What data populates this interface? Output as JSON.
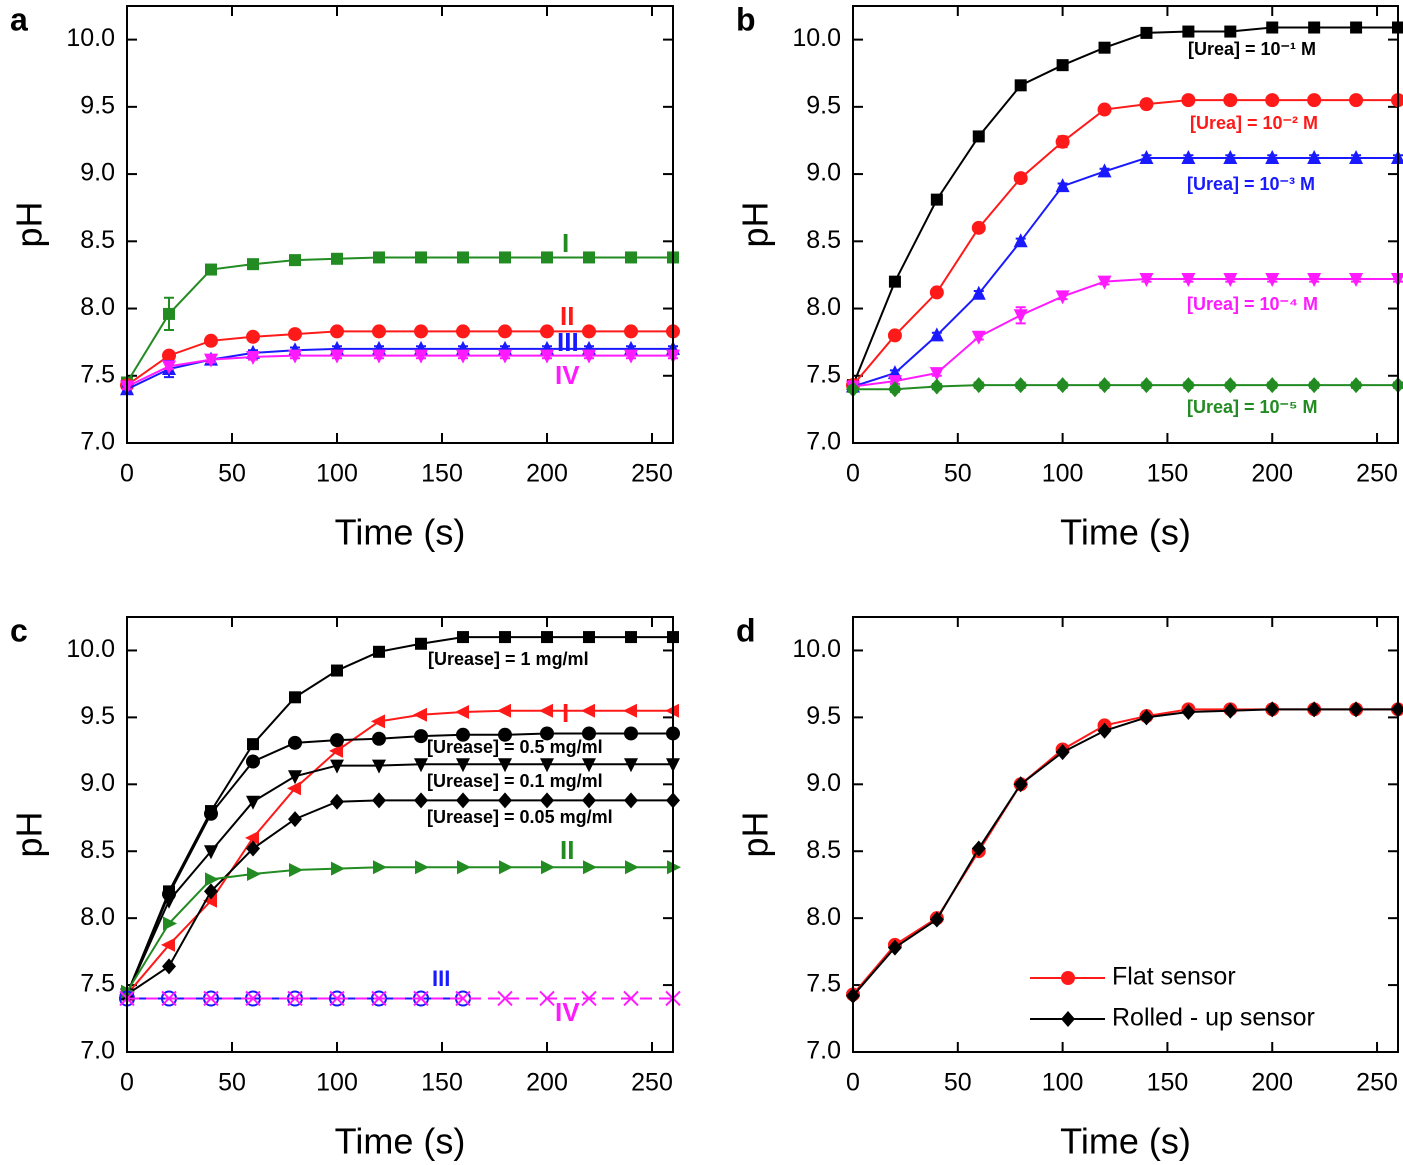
{
  "chart_data": [
    {
      "type": "line",
      "panel": "a",
      "xlabel": "Time (s)",
      "ylabel": "pH",
      "x": [
        0,
        20,
        40,
        60,
        80,
        100,
        120,
        140,
        160,
        180,
        200,
        220,
        240,
        260
      ],
      "xlim": [
        0,
        260
      ],
      "xticks": [
        0,
        50,
        100,
        150,
        200,
        250
      ],
      "ylim": [
        7.0,
        10.25
      ],
      "yticks": [
        {
          "value": 7,
          "label": "7.0"
        },
        7.5,
        {
          "value": 8,
          "label": "8.0"
        },
        8.5,
        {
          "value": 9,
          "label": "9.0"
        },
        9.5,
        {
          "value": 10,
          "label": "10.0"
        }
      ],
      "series": [
        {
          "name": "I",
          "color": "#228b22",
          "marker": "square",
          "values": [
            7.45,
            7.96,
            8.29,
            8.33,
            8.36,
            8.37,
            8.38,
            8.38,
            8.38,
            8.38,
            8.38,
            8.38,
            8.38,
            8.38
          ],
          "errors": [
            0.02,
            0.12,
            0.03,
            0.03,
            0.02,
            0.02,
            0.02,
            0.02,
            0.02,
            0.02,
            0.02,
            0.02,
            0.02,
            0.02
          ]
        },
        {
          "name": "II",
          "color": "#ff1a1a",
          "marker": "circle",
          "values": [
            7.43,
            7.65,
            7.76,
            7.79,
            7.81,
            7.83,
            7.83,
            7.83,
            7.83,
            7.83,
            7.83,
            7.83,
            7.83,
            7.83
          ],
          "errors": [
            0.02,
            0.02,
            0.02,
            0.02,
            0.02,
            0.02,
            0.02,
            0.02,
            0.02,
            0.02,
            0.02,
            0.02,
            0.02,
            0.02
          ]
        },
        {
          "name": "III",
          "color": "#1a1aff",
          "marker": "triangle-up",
          "values": [
            7.4,
            7.55,
            7.62,
            7.67,
            7.69,
            7.7,
            7.7,
            7.7,
            7.7,
            7.7,
            7.7,
            7.7,
            7.7,
            7.7
          ],
          "errors": [
            0.02,
            0.06,
            0.03,
            0.02,
            0.02,
            0.02,
            0.02,
            0.02,
            0.02,
            0.02,
            0.02,
            0.02,
            0.02,
            0.02
          ]
        },
        {
          "name": "IV",
          "color": "#ff1aff",
          "marker": "triangle-down",
          "values": [
            7.42,
            7.57,
            7.62,
            7.64,
            7.65,
            7.65,
            7.65,
            7.65,
            7.65,
            7.65,
            7.65,
            7.65,
            7.65,
            7.65
          ],
          "errors": [
            0.02,
            0.02,
            0.02,
            0.02,
            0.02,
            0.02,
            0.02,
            0.02,
            0.02,
            0.02,
            0.02,
            0.02,
            0.02,
            0.02
          ]
        }
      ],
      "annotations": [
        {
          "text": "I",
          "color": "#228b22"
        },
        {
          "text": "II",
          "color": "#ff1a1a"
        },
        {
          "text": "III",
          "color": "#1a1aff"
        },
        {
          "text": "IV",
          "color": "#ff1aff"
        }
      ]
    },
    {
      "type": "line",
      "panel": "b",
      "xlabel": "Time (s)",
      "ylabel": "pH",
      "x": [
        0,
        20,
        40,
        60,
        80,
        100,
        120,
        140,
        160,
        180,
        200,
        220,
        240,
        260
      ],
      "xlim": [
        0,
        260
      ],
      "xticks": [
        0,
        50,
        100,
        150,
        200,
        250
      ],
      "ylim": [
        7.0,
        10.25
      ],
      "yticks": [
        {
          "value": 7,
          "label": "7.0"
        },
        7.5,
        {
          "value": 8,
          "label": "8.0"
        },
        8.5,
        {
          "value": 9,
          "label": "9.0"
        },
        9.5,
        {
          "value": 10,
          "label": "10.0"
        }
      ],
      "series": [
        {
          "name": "[Urea] = 10⁻¹ M",
          "color": "#000000",
          "marker": "square",
          "values": [
            7.43,
            8.2,
            8.81,
            9.28,
            9.66,
            9.81,
            9.94,
            10.05,
            10.06,
            10.06,
            10.09,
            10.09,
            10.09,
            10.09
          ],
          "errors": [
            0.02,
            0.02,
            0.02,
            0.02,
            0.02,
            0.02,
            0.02,
            0.02,
            0.02,
            0.02,
            0.02,
            0.02,
            0.02,
            0.02
          ]
        },
        {
          "name": "[Urea] = 10⁻² M",
          "color": "#ff1a1a",
          "marker": "circle",
          "values": [
            7.43,
            7.8,
            8.12,
            8.6,
            8.97,
            9.24,
            9.48,
            9.52,
            9.55,
            9.55,
            9.55,
            9.55,
            9.55,
            9.55
          ],
          "errors": [
            0.02,
            0.02,
            0.02,
            0.02,
            0.02,
            0.04,
            0.02,
            0.02,
            0.02,
            0.02,
            0.02,
            0.02,
            0.02,
            0.02
          ]
        },
        {
          "name": "[Urea] = 10⁻³ M",
          "color": "#1a1aff",
          "marker": "triangle-up",
          "values": [
            7.42,
            7.52,
            7.8,
            8.11,
            8.5,
            8.91,
            9.02,
            9.12,
            9.12,
            9.12,
            9.12,
            9.12,
            9.12,
            9.12
          ],
          "errors": [
            0.02,
            0.02,
            0.02,
            0.02,
            0.02,
            0.02,
            0.02,
            0.02,
            0.02,
            0.02,
            0.02,
            0.02,
            0.02,
            0.02
          ]
        },
        {
          "name": "[Urea] = 10⁻⁴ M",
          "color": "#ff1aff",
          "marker": "triangle-down",
          "values": [
            7.42,
            7.46,
            7.52,
            7.79,
            7.95,
            8.09,
            8.2,
            8.22,
            8.22,
            8.22,
            8.22,
            8.22,
            8.22,
            8.22
          ],
          "errors": [
            0.02,
            0.02,
            0.02,
            0.02,
            0.06,
            0.02,
            0.02,
            0.02,
            0.02,
            0.02,
            0.02,
            0.02,
            0.02,
            0.02
          ]
        },
        {
          "name": "[Urea] = 10⁻⁵ M",
          "color": "#228b22",
          "marker": "diamond",
          "values": [
            7.4,
            7.4,
            7.42,
            7.43,
            7.43,
            7.43,
            7.43,
            7.43,
            7.43,
            7.43,
            7.43,
            7.43,
            7.43,
            7.43
          ],
          "errors": [
            0.02,
            0.02,
            0.02,
            0.02,
            0.02,
            0.02,
            0.02,
            0.02,
            0.02,
            0.02,
            0.02,
            0.02,
            0.02,
            0.02
          ]
        }
      ],
      "annotations": [
        {
          "text": "[Urea] = 10⁻¹ M",
          "color": "#000000"
        },
        {
          "text": "[Urea] = 10⁻² M",
          "color": "#ff1a1a"
        },
        {
          "text": "[Urea] = 10⁻³ M",
          "color": "#1a1aff"
        },
        {
          "text": "[Urea] = 10⁻⁴ M",
          "color": "#ff1aff"
        },
        {
          "text": "[Urea] = 10⁻⁵ M",
          "color": "#228b22"
        }
      ]
    },
    {
      "type": "line",
      "panel": "c",
      "xlabel": "Time (s)",
      "ylabel": "pH",
      "x": [
        0,
        20,
        40,
        60,
        80,
        100,
        120,
        140,
        160,
        180,
        200,
        220,
        240,
        260
      ],
      "xlim": [
        0,
        260
      ],
      "xticks": [
        0,
        50,
        100,
        150,
        200,
        250
      ],
      "ylim": [
        7.0,
        10.25
      ],
      "yticks": [
        {
          "value": 7,
          "label": "7.0"
        },
        7.5,
        {
          "value": 8,
          "label": "8.0"
        },
        8.5,
        {
          "value": 9,
          "label": "9.0"
        },
        9.5,
        {
          "value": 10,
          "label": "10.0"
        }
      ],
      "series": [
        {
          "name": "[Urease] = 1 mg/ml",
          "color": "#000000",
          "marker": "square",
          "values": [
            7.43,
            8.2,
            8.8,
            9.3,
            9.65,
            9.85,
            9.99,
            10.05,
            10.1,
            10.1,
            10.1,
            10.1,
            10.1,
            10.1
          ]
        },
        {
          "name": "I",
          "color": "#ff1a1a",
          "marker": "triangle-left",
          "values": [
            7.43,
            7.8,
            8.13,
            8.6,
            8.97,
            9.25,
            9.47,
            9.52,
            9.54,
            9.55,
            9.55,
            9.55,
            9.55,
            9.55
          ]
        },
        {
          "name": "[Urease] = 0.5 mg/ml",
          "color": "#000000",
          "marker": "circle",
          "values": [
            7.43,
            8.18,
            8.78,
            9.17,
            9.31,
            9.33,
            9.34,
            9.36,
            9.37,
            9.37,
            9.38,
            9.38,
            9.38,
            9.38
          ]
        },
        {
          "name": "[Urease] = 0.1 mg/ml",
          "color": "#000000",
          "marker": "triangle-down",
          "values": [
            7.43,
            8.13,
            8.5,
            8.87,
            9.06,
            9.14,
            9.14,
            9.15,
            9.15,
            9.15,
            9.15,
            9.15,
            9.15,
            9.15
          ]
        },
        {
          "name": "[Urease] = 0.05 mg/ml",
          "color": "#000000",
          "marker": "diamond",
          "values": [
            7.43,
            7.64,
            8.2,
            8.52,
            8.74,
            8.87,
            8.88,
            8.88,
            8.88,
            8.88,
            8.88,
            8.88,
            8.88,
            8.88
          ]
        },
        {
          "name": "II",
          "color": "#228b22",
          "marker": "triangle-right",
          "values": [
            7.45,
            7.96,
            8.29,
            8.33,
            8.36,
            8.37,
            8.38,
            8.38,
            8.38,
            8.38,
            8.38,
            8.38,
            8.38,
            8.38
          ]
        },
        {
          "name": "III",
          "color": "#1a1aff",
          "marker": "circle-open",
          "values": [
            7.4,
            7.4,
            7.4,
            7.4,
            7.4,
            7.4,
            7.4,
            7.4,
            7.4,
            null,
            null,
            null,
            null,
            null
          ]
        },
        {
          "name": "IV",
          "color": "#ff1aff",
          "marker": "x",
          "dash": true,
          "values": [
            7.4,
            7.4,
            7.4,
            7.4,
            7.4,
            7.4,
            7.4,
            7.4,
            7.4,
            7.4,
            7.4,
            7.4,
            7.4,
            7.4
          ]
        }
      ],
      "annotations": [
        {
          "text": "[Urease] = 1 mg/ml",
          "color": "#000000"
        },
        {
          "text": "I",
          "color": "#ff1a1a"
        },
        {
          "text": "[Urease] = 0.5 mg/ml",
          "color": "#000000"
        },
        {
          "text": "[Urease] = 0.1 mg/ml",
          "color": "#000000"
        },
        {
          "text": "[Urease] = 0.05 mg/ml",
          "color": "#000000"
        },
        {
          "text": "II",
          "color": "#228b22"
        },
        {
          "text": "III",
          "color": "#1a1aff"
        },
        {
          "text": "IV",
          "color": "#ff1aff"
        }
      ]
    },
    {
      "type": "line",
      "panel": "d",
      "xlabel": "Time (s)",
      "ylabel": "pH",
      "x": [
        0,
        20,
        40,
        60,
        80,
        100,
        120,
        140,
        160,
        180,
        200,
        220,
        240,
        260
      ],
      "xlim": [
        0,
        260
      ],
      "xticks": [
        0,
        50,
        100,
        150,
        200,
        250
      ],
      "ylim": [
        7.0,
        10.25
      ],
      "yticks": [
        {
          "value": 7,
          "label": "7.0"
        },
        7.5,
        {
          "value": 8,
          "label": "8.0"
        },
        8.5,
        {
          "value": 9,
          "label": "9.0"
        },
        9.5,
        {
          "value": 10,
          "label": "10.0"
        }
      ],
      "legend": "lower right",
      "series": [
        {
          "name": "Flat sensor",
          "color": "#ff1a1a",
          "marker": "circle",
          "values": [
            7.43,
            7.8,
            8.0,
            8.5,
            9.0,
            9.26,
            9.44,
            9.51,
            9.56,
            9.56,
            9.56,
            9.56,
            9.56,
            9.56
          ]
        },
        {
          "name": "Rolled - up sensor",
          "color": "#000000",
          "marker": "diamond",
          "values": [
            7.42,
            7.78,
            7.99,
            8.52,
            9.0,
            9.24,
            9.4,
            9.5,
            9.54,
            9.55,
            9.56,
            9.56,
            9.56,
            9.56
          ]
        }
      ]
    }
  ]
}
